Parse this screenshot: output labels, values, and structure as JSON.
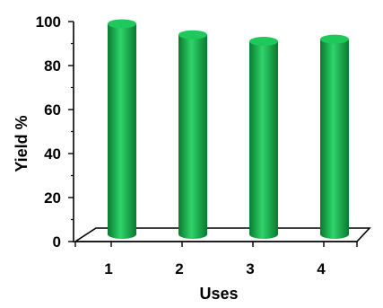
{
  "chart_data": {
    "type": "bar",
    "title": "",
    "xlabel": "Uses",
    "ylabel": "Yield %",
    "categories": [
      "1",
      "2",
      "3",
      "4"
    ],
    "values": [
      99,
      94,
      91,
      92
    ],
    "ylim": [
      0,
      100
    ],
    "yticks": [
      "0",
      "20",
      "40",
      "60",
      "80",
      "100"
    ],
    "grid": false,
    "legend": "none",
    "colors": {
      "bar_light": "#2fd46a",
      "bar_mid": "#12b04a",
      "bar_dark": "#0a7a30",
      "bar_top": "#1ec85a",
      "axis": "#000000"
    }
  }
}
